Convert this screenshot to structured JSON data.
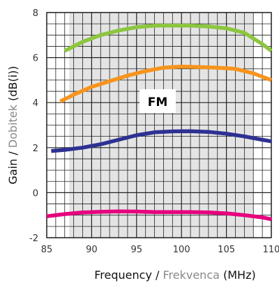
{
  "chart_data": {
    "type": "line",
    "xlim": [
      85,
      110
    ],
    "ylim": [
      -2,
      8
    ],
    "x_ticks": [
      85,
      90,
      95,
      100,
      105,
      110
    ],
    "y_ticks": [
      -2,
      0,
      2,
      4,
      6,
      8
    ],
    "grid": true,
    "highlight_band": [
      87.5,
      108
    ],
    "annotation": "FM",
    "xlabel": {
      "main": "Frequency",
      "sep": " / ",
      "alt": "Frekvenca",
      "unit": " (MHz)"
    },
    "ylabel": {
      "main": "Gain",
      "sep": " / ",
      "alt": "Dobitek",
      "unit": " (dB(i))"
    },
    "colors": {
      "green": "#8cc63f",
      "orange": "#f7941d",
      "blue": "#2e3192",
      "magenta": "#e6007e",
      "alt_text": "#888888",
      "band": "#e4e4e4"
    },
    "series": [
      {
        "color": "#8cc63f",
        "x": [
          87,
          89,
          91,
          93,
          95,
          97,
          99,
          101,
          103,
          105,
          107,
          109,
          110
        ],
        "y": [
          6.3,
          6.7,
          7.0,
          7.2,
          7.35,
          7.42,
          7.42,
          7.42,
          7.38,
          7.3,
          7.1,
          6.6,
          6.3
        ]
      },
      {
        "color": "#f7941d",
        "x": [
          86.5,
          88,
          90,
          92,
          94,
          96,
          98,
          100,
          102,
          104,
          106,
          108,
          110
        ],
        "y": [
          4.05,
          4.35,
          4.7,
          4.95,
          5.2,
          5.4,
          5.55,
          5.6,
          5.58,
          5.55,
          5.5,
          5.3,
          5.0
        ]
      },
      {
        "color": "#2e3192",
        "x": [
          85.5,
          87,
          89,
          91,
          93,
          95,
          97,
          99,
          101,
          103,
          105,
          107,
          109,
          110
        ],
        "y": [
          1.85,
          1.9,
          2.0,
          2.15,
          2.35,
          2.55,
          2.68,
          2.72,
          2.73,
          2.7,
          2.62,
          2.5,
          2.35,
          2.28
        ]
      },
      {
        "color": "#e6007e",
        "x": [
          85,
          87,
          89,
          91,
          93,
          95,
          97,
          99,
          101,
          103,
          105,
          107,
          109,
          110
        ],
        "y": [
          -1.05,
          -0.95,
          -0.88,
          -0.85,
          -0.83,
          -0.84,
          -0.86,
          -0.86,
          -0.86,
          -0.88,
          -0.92,
          -1.0,
          -1.1,
          -1.18
        ]
      }
    ]
  }
}
